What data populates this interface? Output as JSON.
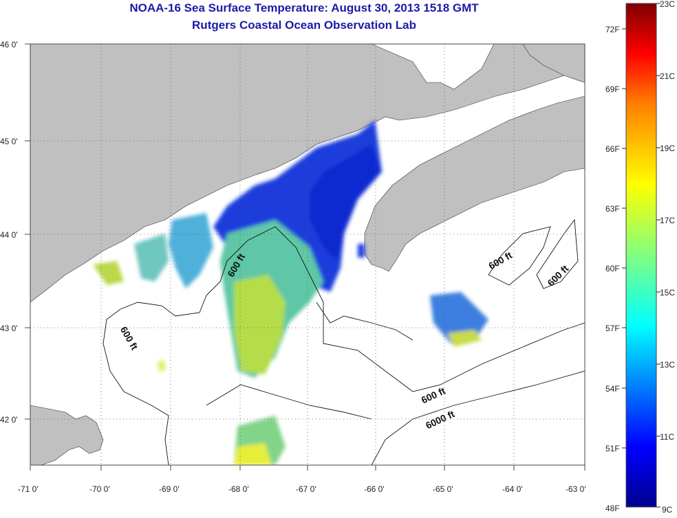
{
  "title": "NOAA-16 Sea Surface Temperature:  August 30, 2013 1518 GMT",
  "subtitle": "Rutgers Coastal Ocean Observation Lab",
  "map": {
    "lon_ticks": [
      "-71 0'",
      "-70 0'",
      "-69 0'",
      "-68 0'",
      "-67 0'",
      "-66 0'",
      "-65 0'",
      "-64 0'",
      "-63 0'"
    ],
    "lat_ticks": [
      "46 0'",
      "45 0'",
      "44 0'",
      "43 0'",
      "42 0'"
    ],
    "contour_labels": [
      "600 ft",
      "600 ft",
      "600 ft",
      "600 ft",
      "600 ft",
      "6000 ft"
    ],
    "land_color": "#c0c0c0",
    "no_data_color": "#ffffff"
  },
  "colorbar": {
    "fahrenheit": [
      "72F",
      "69F",
      "66F",
      "63F",
      "60F",
      "57F",
      "54F",
      "51F",
      "48F"
    ],
    "celsius": [
      "23C",
      "21C",
      "19C",
      "17C",
      "15C",
      "13C",
      "11C",
      "9C"
    ],
    "colors": [
      "#7f0000",
      "#ff0000",
      "#ff8000",
      "#ffff00",
      "#80ff80",
      "#00ffff",
      "#0080ff",
      "#0000ff",
      "#00008f"
    ]
  }
}
